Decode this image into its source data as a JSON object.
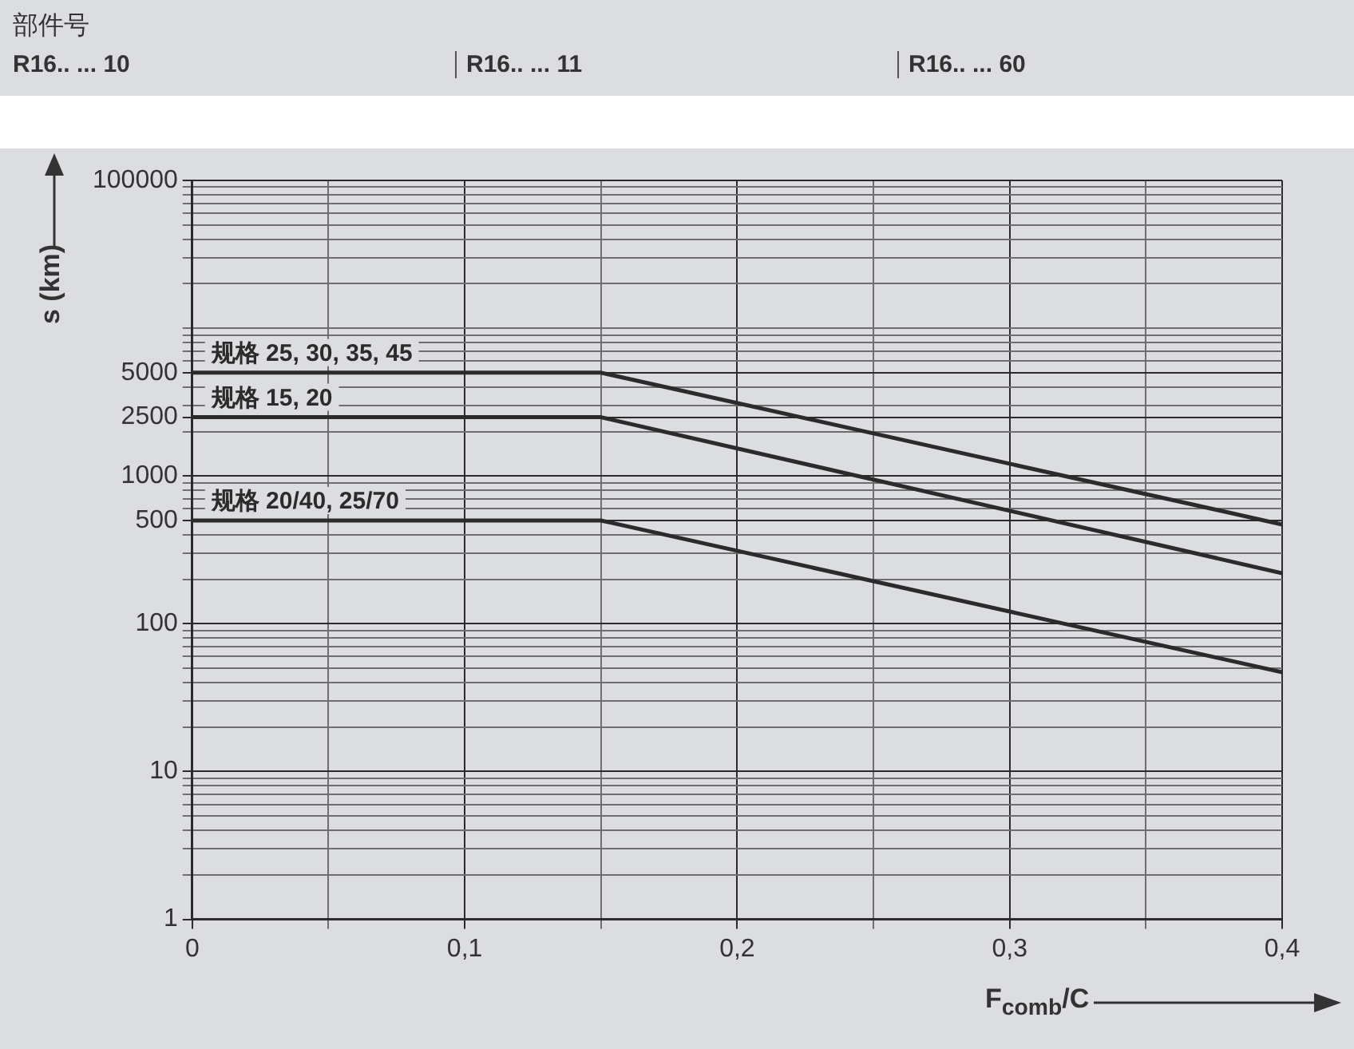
{
  "chart_data": {
    "type": "line",
    "xlabel": "F$_{comb}$/C",
    "ylabel": "s (km)",
    "annotations": [
      "部件号",
      "R16.. ... 10",
      "R16.. ... 11",
      "R16.. ... 60"
    ],
    "x": [
      0,
      0.15,
      0.4
    ],
    "series": [
      {
        "name": "规格 25, 30, 35, 45",
        "color": "#2b2b2b",
        "values": [
          5000,
          5000,
          470
        ]
      },
      {
        "name": "规格 15, 20",
        "color": "#2b2b2b",
        "values": [
          2500,
          2500,
          220
        ]
      },
      {
        "name": "规格 20/40, 25/70",
        "color": "#2b2b2b",
        "values": [
          500,
          500,
          47
        ]
      }
    ],
    "log": "y",
    "xlim": [
      0,
      0.4
    ],
    "ylim": [
      1,
      100000
    ],
    "xticks": [
      0,
      {
        "value": 0.05,
        "label": null
      },
      {
        "value": 0.1,
        "label": "0,1"
      },
      {
        "value": 0.15,
        "label": null
      },
      {
        "value": 0.2,
        "label": "0,2"
      },
      {
        "value": 0.25,
        "label": null
      },
      {
        "value": 0.3,
        "label": "0,3"
      },
      {
        "value": 0.35,
        "label": null
      },
      {
        "value": 0.4,
        "label": "0,4"
      }
    ],
    "yticks": [
      1,
      {
        "value": 2,
        "label": null
      },
      {
        "value": 3,
        "label": null
      },
      {
        "value": 4,
        "label": null
      },
      {
        "value": 5,
        "label": null
      },
      {
        "value": 6,
        "label": null
      },
      {
        "value": 7,
        "label": null
      },
      {
        "value": 8,
        "label": null
      },
      {
        "value": 9,
        "label": null
      },
      10,
      {
        "value": 20,
        "label": null
      },
      {
        "value": 30,
        "label": null
      },
      {
        "value": 40,
        "label": null
      },
      {
        "value": 50,
        "label": null
      },
      {
        "value": 60,
        "label": null
      },
      {
        "value": 70,
        "label": null
      },
      {
        "value": 80,
        "label": null
      },
      {
        "value": 90,
        "label": null
      },
      100,
      {
        "value": 200,
        "label": null
      },
      {
        "value": 300,
        "label": null
      },
      {
        "value": 400,
        "label": null
      },
      500,
      {
        "value": 600,
        "label": null
      },
      {
        "value": 700,
        "label": null
      },
      {
        "value": 800,
        "label": null
      },
      {
        "value": 900,
        "label": null
      },
      1000,
      {
        "value": 2000,
        "label": null
      },
      2500,
      {
        "value": 3000,
        "label": null
      },
      {
        "value": 4000,
        "label": null
      },
      5000,
      {
        "value": 6000,
        "label": null
      },
      {
        "value": 7000,
        "label": null
      },
      {
        "value": 8000,
        "label": null
      },
      {
        "value": 9000,
        "label": null
      },
      {
        "value": 10000,
        "label": null
      },
      {
        "value": 20000,
        "label": null
      },
      {
        "value": 30000,
        "label": null
      },
      {
        "value": 40000,
        "label": null
      },
      {
        "value": 50000,
        "label": null
      },
      {
        "value": 60000,
        "label": null
      },
      {
        "value": 70000,
        "label": null
      },
      {
        "value": 80000,
        "label": null
      },
      {
        "value": 90000,
        "label": null
      },
      100000
    ],
    "grid": true,
    "legend": false,
    "marker": "none",
    "line_style": "solid"
  }
}
